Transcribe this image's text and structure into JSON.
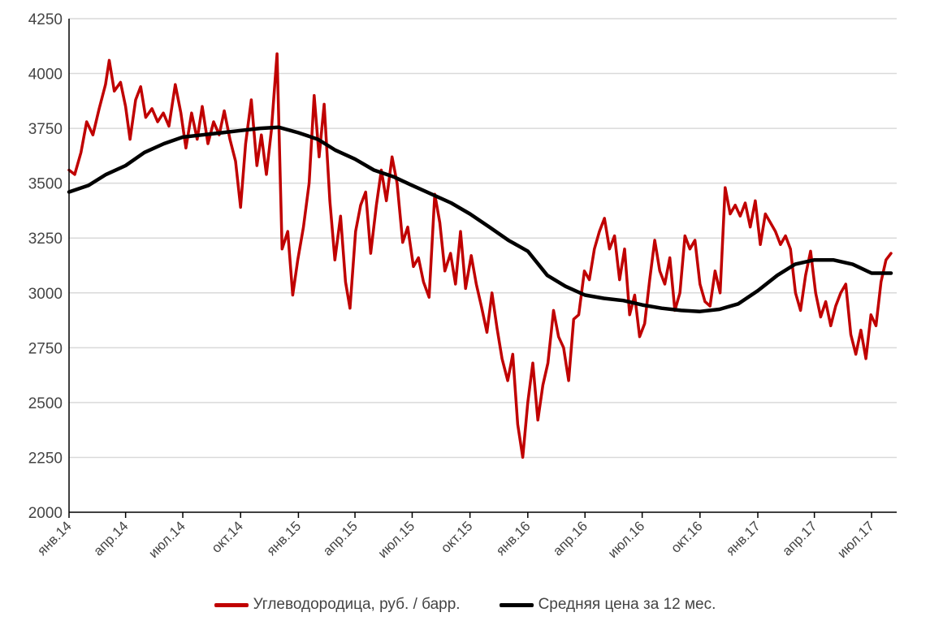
{
  "chart_data": {
    "type": "line",
    "ylim": [
      2000,
      4250
    ],
    "y_ticks": [
      "2000",
      "2250",
      "2500",
      "2750",
      "3000",
      "3250",
      "3500",
      "3750",
      "4000",
      "4250"
    ],
    "x_ticks": [
      "янв.14",
      "апр.14",
      "июл.14",
      "окт.14",
      "янв.15",
      "апр.15",
      "июл.15",
      "окт.15",
      "янв.16",
      "апр.16",
      "июл.16",
      "окт.16",
      "янв.17",
      "апр.17",
      "июл.17"
    ],
    "grid": true,
    "legend_position": "bottom",
    "series": [
      {
        "name": "Углеводородица, руб. / барр.",
        "color": "#c00000",
        "points": [
          [
            "2014-01-01",
            3560
          ],
          [
            "2014-01-10",
            3540
          ],
          [
            "2014-01-20",
            3640
          ],
          [
            "2014-01-29",
            3780
          ],
          [
            "2014-02-08",
            3720
          ],
          [
            "2014-02-18",
            3840
          ],
          [
            "2014-02-28",
            3950
          ],
          [
            "2014-03-06",
            4060
          ],
          [
            "2014-03-14",
            3920
          ],
          [
            "2014-03-24",
            3960
          ],
          [
            "2014-04-01",
            3850
          ],
          [
            "2014-04-08",
            3700
          ],
          [
            "2014-04-17",
            3880
          ],
          [
            "2014-04-25",
            3940
          ],
          [
            "2014-05-03",
            3800
          ],
          [
            "2014-05-13",
            3840
          ],
          [
            "2014-05-22",
            3780
          ],
          [
            "2014-05-31",
            3820
          ],
          [
            "2014-06-09",
            3760
          ],
          [
            "2014-06-19",
            3950
          ],
          [
            "2014-06-28",
            3820
          ],
          [
            "2014-07-06",
            3660
          ],
          [
            "2014-07-15",
            3820
          ],
          [
            "2014-07-24",
            3700
          ],
          [
            "2014-08-01",
            3850
          ],
          [
            "2014-08-10",
            3680
          ],
          [
            "2014-08-19",
            3780
          ],
          [
            "2014-08-28",
            3720
          ],
          [
            "2014-09-05",
            3830
          ],
          [
            "2014-09-14",
            3700
          ],
          [
            "2014-09-23",
            3600
          ],
          [
            "2014-10-01",
            3390
          ],
          [
            "2014-10-09",
            3680
          ],
          [
            "2014-10-18",
            3880
          ],
          [
            "2014-10-27",
            3580
          ],
          [
            "2014-11-03",
            3720
          ],
          [
            "2014-11-11",
            3540
          ],
          [
            "2014-11-19",
            3740
          ],
          [
            "2014-11-28",
            4090
          ],
          [
            "2014-12-06",
            3200
          ],
          [
            "2014-12-15",
            3280
          ],
          [
            "2014-12-23",
            2990
          ],
          [
            "2014-12-31",
            3150
          ],
          [
            "2015-01-09",
            3300
          ],
          [
            "2015-01-18",
            3500
          ],
          [
            "2015-01-26",
            3900
          ],
          [
            "2015-02-03",
            3620
          ],
          [
            "2015-02-11",
            3860
          ],
          [
            "2015-02-20",
            3420
          ],
          [
            "2015-02-28",
            3150
          ],
          [
            "2015-03-09",
            3350
          ],
          [
            "2015-03-17",
            3050
          ],
          [
            "2015-03-24",
            2930
          ],
          [
            "2015-04-02",
            3280
          ],
          [
            "2015-04-10",
            3400
          ],
          [
            "2015-04-18",
            3460
          ],
          [
            "2015-04-26",
            3180
          ],
          [
            "2015-05-05",
            3400
          ],
          [
            "2015-05-13",
            3560
          ],
          [
            "2015-05-21",
            3420
          ],
          [
            "2015-05-30",
            3620
          ],
          [
            "2015-06-07",
            3500
          ],
          [
            "2015-06-16",
            3230
          ],
          [
            "2015-06-24",
            3300
          ],
          [
            "2015-07-03",
            3120
          ],
          [
            "2015-07-11",
            3160
          ],
          [
            "2015-07-19",
            3050
          ],
          [
            "2015-07-28",
            2980
          ],
          [
            "2015-08-06",
            3450
          ],
          [
            "2015-08-14",
            3320
          ],
          [
            "2015-08-22",
            3100
          ],
          [
            "2015-08-31",
            3180
          ],
          [
            "2015-09-08",
            3040
          ],
          [
            "2015-09-16",
            3280
          ],
          [
            "2015-09-24",
            3020
          ],
          [
            "2015-10-03",
            3170
          ],
          [
            "2015-10-11",
            3040
          ],
          [
            "2015-10-19",
            2940
          ],
          [
            "2015-10-28",
            2820
          ],
          [
            "2015-11-05",
            3000
          ],
          [
            "2015-11-13",
            2840
          ],
          [
            "2015-11-21",
            2700
          ],
          [
            "2015-11-30",
            2600
          ],
          [
            "2015-12-08",
            2720
          ],
          [
            "2015-12-16",
            2400
          ],
          [
            "2015-12-24",
            2250
          ],
          [
            "2016-01-01",
            2500
          ],
          [
            "2016-01-09",
            2680
          ],
          [
            "2016-01-17",
            2420
          ],
          [
            "2016-01-25",
            2580
          ],
          [
            "2016-02-02",
            2680
          ],
          [
            "2016-02-11",
            2920
          ],
          [
            "2016-02-19",
            2800
          ],
          [
            "2016-02-27",
            2750
          ],
          [
            "2016-03-06",
            2600
          ],
          [
            "2016-03-14",
            2880
          ],
          [
            "2016-03-22",
            2900
          ],
          [
            "2016-03-31",
            3100
          ],
          [
            "2016-04-08",
            3060
          ],
          [
            "2016-04-16",
            3200
          ],
          [
            "2016-04-24",
            3280
          ],
          [
            "2016-05-02",
            3340
          ],
          [
            "2016-05-10",
            3200
          ],
          [
            "2016-05-18",
            3260
          ],
          [
            "2016-05-26",
            3060
          ],
          [
            "2016-06-03",
            3200
          ],
          [
            "2016-06-11",
            2900
          ],
          [
            "2016-06-19",
            2990
          ],
          [
            "2016-06-27",
            2800
          ],
          [
            "2016-07-05",
            2860
          ],
          [
            "2016-07-13",
            3060
          ],
          [
            "2016-07-21",
            3240
          ],
          [
            "2016-07-29",
            3100
          ],
          [
            "2016-08-06",
            3040
          ],
          [
            "2016-08-14",
            3160
          ],
          [
            "2016-08-22",
            2920
          ],
          [
            "2016-08-30",
            3000
          ],
          [
            "2016-09-07",
            3260
          ],
          [
            "2016-09-15",
            3200
          ],
          [
            "2016-09-23",
            3240
          ],
          [
            "2016-10-01",
            3040
          ],
          [
            "2016-10-09",
            2960
          ],
          [
            "2016-10-17",
            2940
          ],
          [
            "2016-10-25",
            3100
          ],
          [
            "2016-11-02",
            3000
          ],
          [
            "2016-11-10",
            3480
          ],
          [
            "2016-11-18",
            3360
          ],
          [
            "2016-11-26",
            3400
          ],
          [
            "2016-12-04",
            3350
          ],
          [
            "2016-12-12",
            3410
          ],
          [
            "2016-12-20",
            3300
          ],
          [
            "2016-12-28",
            3420
          ],
          [
            "2017-01-05",
            3220
          ],
          [
            "2017-01-13",
            3360
          ],
          [
            "2017-01-21",
            3320
          ],
          [
            "2017-01-29",
            3280
          ],
          [
            "2017-02-06",
            3220
          ],
          [
            "2017-02-14",
            3260
          ],
          [
            "2017-02-22",
            3200
          ],
          [
            "2017-03-02",
            3000
          ],
          [
            "2017-03-10",
            2920
          ],
          [
            "2017-03-18",
            3080
          ],
          [
            "2017-03-26",
            3190
          ],
          [
            "2017-04-03",
            3000
          ],
          [
            "2017-04-11",
            2890
          ],
          [
            "2017-04-19",
            2960
          ],
          [
            "2017-04-27",
            2850
          ],
          [
            "2017-05-05",
            2940
          ],
          [
            "2017-05-13",
            3000
          ],
          [
            "2017-05-21",
            3040
          ],
          [
            "2017-05-29",
            2810
          ],
          [
            "2017-06-06",
            2720
          ],
          [
            "2017-06-14",
            2830
          ],
          [
            "2017-06-22",
            2700
          ],
          [
            "2017-06-30",
            2900
          ],
          [
            "2017-07-08",
            2850
          ],
          [
            "2017-07-16",
            3050
          ],
          [
            "2017-07-24",
            3150
          ],
          [
            "2017-08-01",
            3180
          ]
        ]
      },
      {
        "name": "Средняя цена за 12 мес.",
        "color": "#000000",
        "points": [
          [
            "2014-01-01",
            3460
          ],
          [
            "2014-02-01",
            3490
          ],
          [
            "2014-03-01",
            3540
          ],
          [
            "2014-04-01",
            3580
          ],
          [
            "2014-05-01",
            3640
          ],
          [
            "2014-06-01",
            3680
          ],
          [
            "2014-07-01",
            3710
          ],
          [
            "2014-08-01",
            3720
          ],
          [
            "2014-09-01",
            3730
          ],
          [
            "2014-10-01",
            3740
          ],
          [
            "2014-11-01",
            3750
          ],
          [
            "2014-12-01",
            3755
          ],
          [
            "2015-01-01",
            3730
          ],
          [
            "2015-02-01",
            3700
          ],
          [
            "2015-03-01",
            3650
          ],
          [
            "2015-04-01",
            3610
          ],
          [
            "2015-05-01",
            3560
          ],
          [
            "2015-06-01",
            3530
          ],
          [
            "2015-07-01",
            3490
          ],
          [
            "2015-08-01",
            3450
          ],
          [
            "2015-09-01",
            3410
          ],
          [
            "2015-10-01",
            3360
          ],
          [
            "2015-11-01",
            3300
          ],
          [
            "2015-12-01",
            3240
          ],
          [
            "2016-01-01",
            3190
          ],
          [
            "2016-02-01",
            3080
          ],
          [
            "2016-03-01",
            3030
          ],
          [
            "2016-04-01",
            2990
          ],
          [
            "2016-05-01",
            2975
          ],
          [
            "2016-06-01",
            2965
          ],
          [
            "2016-07-01",
            2945
          ],
          [
            "2016-08-01",
            2930
          ],
          [
            "2016-09-01",
            2920
          ],
          [
            "2016-10-01",
            2915
          ],
          [
            "2016-11-01",
            2925
          ],
          [
            "2016-12-01",
            2950
          ],
          [
            "2017-01-01",
            3010
          ],
          [
            "2017-02-01",
            3080
          ],
          [
            "2017-03-01",
            3130
          ],
          [
            "2017-04-01",
            3150
          ],
          [
            "2017-05-01",
            3150
          ],
          [
            "2017-06-01",
            3130
          ],
          [
            "2017-07-01",
            3090
          ],
          [
            "2017-08-01",
            3090
          ]
        ]
      }
    ]
  }
}
